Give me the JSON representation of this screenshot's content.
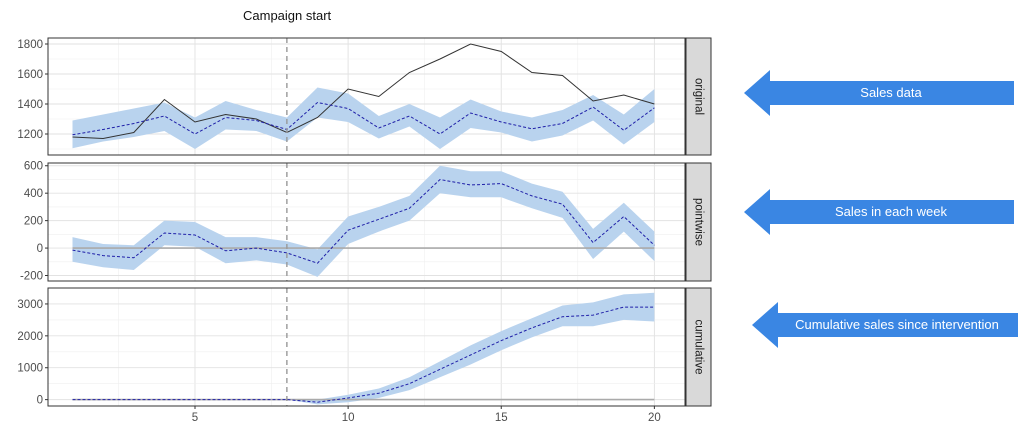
{
  "colors": {
    "band": "#b9d3ee",
    "expected": "#1f1fa8",
    "actual": "#333333",
    "strip": "#d9d9d9",
    "arrow": "#3a86e3",
    "vline": "#999999"
  },
  "annotation": {
    "campaign_label": "Campaign start",
    "campaign_x": 8
  },
  "arrows": [
    {
      "label": "Sales data",
      "icon": "arrow-left-icon"
    },
    {
      "label": "Sales in each week",
      "icon": "arrow-left-icon"
    },
    {
      "label": "Cumulative sales since intervention",
      "icon": "arrow-left-icon"
    }
  ],
  "chart_data": {
    "type": "line",
    "x": [
      1,
      2,
      3,
      4,
      5,
      6,
      7,
      8,
      9,
      10,
      11,
      12,
      13,
      14,
      15,
      16,
      17,
      18,
      19,
      20
    ],
    "xlim": [
      0.2,
      21
    ],
    "x_ticks": [
      5,
      10,
      15,
      20
    ],
    "grid": true,
    "legend": "none",
    "panels": [
      {
        "strip": "original",
        "ylim": [
          1060,
          1840
        ],
        "y_ticks": [
          1200,
          1400,
          1600,
          1800
        ],
        "series": [
          {
            "role": "actual",
            "values": [
              1180,
              1170,
              1210,
              1430,
              1280,
              1330,
              1300,
              1210,
              1310,
              1500,
              1450,
              1610,
              1700,
              1800,
              1750,
              1610,
              1590,
              1420,
              1460,
              1400
            ]
          },
          {
            "role": "expected",
            "values": [
              1195,
              1230,
              1270,
              1320,
              1200,
              1310,
              1290,
              1230,
              1410,
              1370,
              1240,
              1320,
              1200,
              1340,
              1280,
              1235,
              1270,
              1380,
              1225,
              1375
            ]
          },
          {
            "role": "lower",
            "values": [
              1105,
              1150,
              1180,
              1220,
              1100,
              1230,
              1220,
              1150,
              1310,
              1280,
              1170,
              1250,
              1100,
              1240,
              1210,
              1150,
              1190,
              1290,
              1130,
              1280
            ]
          },
          {
            "role": "upper",
            "values": [
              1290,
              1330,
              1370,
              1410,
              1310,
              1420,
              1360,
              1310,
              1510,
              1470,
              1320,
              1400,
              1310,
              1430,
              1350,
              1310,
              1360,
              1460,
              1330,
              1500
            ]
          }
        ]
      },
      {
        "strip": "pointwise",
        "ylim": [
          -240,
          620
        ],
        "y_ticks": [
          -200,
          0,
          200,
          400,
          600
        ],
        "series": [
          {
            "role": "zero",
            "values": [
              0,
              0,
              0,
              0,
              0,
              0,
              0,
              0,
              0,
              0,
              0,
              0,
              0,
              0,
              0,
              0,
              0,
              0,
              0,
              0
            ]
          },
          {
            "role": "expected",
            "values": [
              -15,
              -55,
              -70,
              110,
              95,
              -20,
              0,
              -35,
              -110,
              130,
              210,
              290,
              500,
              460,
              470,
              380,
              320,
              40,
              230,
              20
            ]
          },
          {
            "role": "lower",
            "values": [
              -100,
              -140,
              -160,
              20,
              10,
              -110,
              -90,
              -120,
              -210,
              30,
              120,
              200,
              400,
              370,
              370,
              290,
              220,
              -80,
              120,
              -95
            ]
          },
          {
            "role": "upper",
            "values": [
              80,
              30,
              20,
              200,
              190,
              80,
              80,
              50,
              -10,
              230,
              300,
              380,
              600,
              560,
              560,
              470,
              410,
              140,
              330,
              120
            ]
          }
        ]
      },
      {
        "strip": "cumulative",
        "ylim": [
          -200,
          3500
        ],
        "y_ticks": [
          0,
          1000,
          2000,
          3000
        ],
        "series": [
          {
            "role": "zero",
            "values": [
              0,
              0,
              0,
              0,
              0,
              0,
              0,
              0,
              0,
              0,
              0,
              0,
              0,
              0,
              0,
              0,
              0,
              0,
              0,
              0
            ]
          },
          {
            "role": "expected",
            "values": [
              0,
              0,
              0,
              0,
              0,
              0,
              0,
              0,
              -80,
              50,
              200,
              500,
              950,
              1400,
              1850,
              2250,
              2600,
              2650,
              2900,
              2900
            ]
          },
          {
            "role": "lower",
            "values": [
              0,
              0,
              0,
              0,
              0,
              0,
              0,
              0,
              -150,
              -80,
              50,
              300,
              700,
              1100,
              1550,
              1950,
              2300,
              2300,
              2500,
              2450
            ]
          },
          {
            "role": "upper",
            "values": [
              0,
              0,
              0,
              0,
              0,
              0,
              0,
              0,
              0,
              150,
              350,
              700,
              1200,
              1700,
              2150,
              2550,
              2950,
              3050,
              3300,
              3350
            ]
          }
        ]
      }
    ]
  }
}
